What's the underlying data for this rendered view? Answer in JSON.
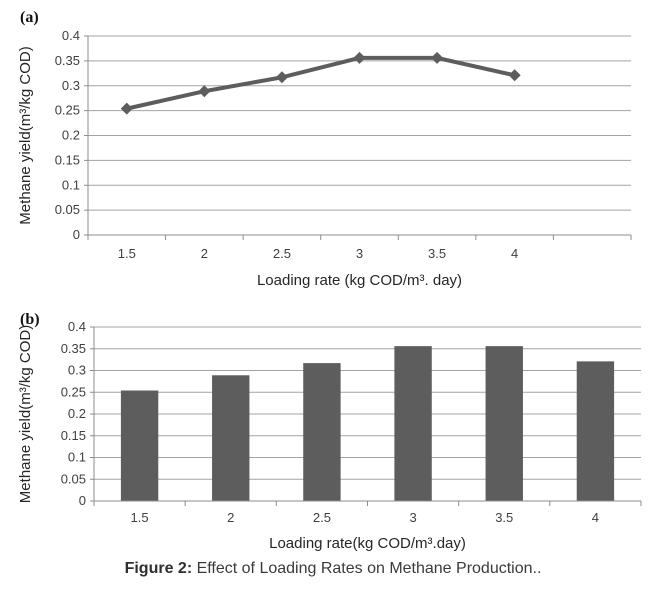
{
  "figure": {
    "caption_prefix": "Figure 2:",
    "caption_rest": " Effect of Loading Rates on Methane Production.."
  },
  "colors": {
    "series": "#5d5d5d",
    "grid": "#a3a3a3",
    "axis": "#8c8c8c",
    "tick_text": "#3f3f3f",
    "title_text": "#262626"
  },
  "chart_data": [
    {
      "type": "line",
      "panel_label": "(a)",
      "categories": [
        "1.5",
        "2",
        "2.5",
        "3",
        "3.5",
        "4"
      ],
      "values": [
        0.254,
        0.289,
        0.317,
        0.356,
        0.356,
        0.321
      ],
      "extra_slots": 1,
      "xlabel": "Loading rate (kg COD/m³. day)",
      "ylabel": "Methane yield(m³/kg COD)",
      "ylim": [
        0,
        0.4
      ],
      "ytick_step": 0.05,
      "yticks": [
        "0",
        "0.05",
        "0.1",
        "0.15",
        "0.2",
        "0.25",
        "0.3",
        "0.35",
        "0.4"
      ],
      "grid": true,
      "legend": "none",
      "marker": "diamond",
      "series_color": "#5d5d5d"
    },
    {
      "type": "bar",
      "panel_label": "(b)",
      "categories": [
        "1.5",
        "2",
        "2.5",
        "3",
        "3.5",
        "4"
      ],
      "values": [
        0.254,
        0.289,
        0.317,
        0.356,
        0.356,
        0.321
      ],
      "extra_slots": 0,
      "xlabel": "Loading rate(kg COD/m³.day)",
      "ylabel": "Methane yield(m³/kg COD)",
      "ylim": [
        0,
        0.4
      ],
      "ytick_step": 0.05,
      "yticks": [
        "0",
        "0.05",
        "0.1",
        "0.15",
        "0.2",
        "0.25",
        "0.3",
        "0.35",
        "0.4"
      ],
      "grid": true,
      "legend": "none",
      "series_color": "#5d5d5d"
    }
  ]
}
